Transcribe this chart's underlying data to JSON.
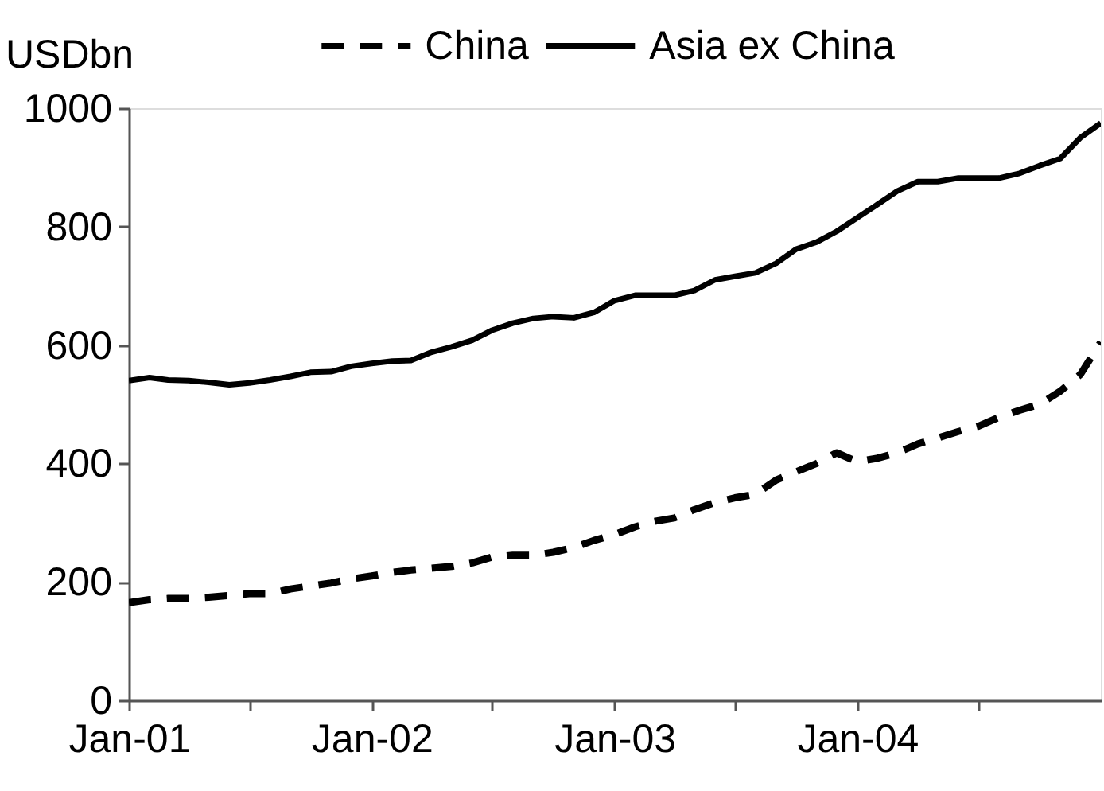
{
  "chart_data": {
    "type": "line",
    "ylabel": "USDbn",
    "x": [
      "2001-01",
      "2001-02",
      "2001-03",
      "2001-04",
      "2001-05",
      "2001-06",
      "2001-07",
      "2001-08",
      "2001-09",
      "2001-10",
      "2001-11",
      "2001-12",
      "2002-01",
      "2002-02",
      "2002-03",
      "2002-04",
      "2002-05",
      "2002-06",
      "2002-07",
      "2002-08",
      "2002-09",
      "2002-10",
      "2002-11",
      "2002-12",
      "2003-01",
      "2003-02",
      "2003-03",
      "2003-04",
      "2003-05",
      "2003-06",
      "2003-07",
      "2003-08",
      "2003-09",
      "2003-10",
      "2003-11",
      "2003-12",
      "2004-01",
      "2004-02",
      "2004-03",
      "2004-04",
      "2004-05",
      "2004-06",
      "2004-07",
      "2004-08",
      "2004-09",
      "2004-10",
      "2004-11",
      "2004-12",
      "2005-01"
    ],
    "series": [
      {
        "name": "China",
        "color": "#000000",
        "line_style": "dashed",
        "values": [
          165,
          170,
          172,
          172,
          174,
          177,
          180,
          180,
          188,
          193,
          198,
          205,
          210,
          216,
          220,
          223,
          226,
          232,
          242,
          245,
          245,
          250,
          258,
          270,
          280,
          293,
          302,
          308,
          322,
          334,
          342,
          348,
          372,
          386,
          400,
          418,
          403,
          409,
          418,
          433,
          443,
          454,
          463,
          478,
          490,
          500,
          522,
          550,
          605
        ]
      },
      {
        "name": "Asia ex China",
        "color": "#000000",
        "line_style": "solid",
        "values": [
          540,
          545,
          541,
          540,
          537,
          533,
          536,
          541,
          547,
          554,
          555,
          564,
          569,
          573,
          574,
          588,
          597,
          608,
          625,
          637,
          645,
          648,
          646,
          655,
          675,
          684,
          684,
          684,
          692,
          710,
          716,
          722,
          738,
          762,
          774,
          792,
          815,
          838,
          860,
          876,
          876,
          882,
          882,
          882,
          890,
          903,
          915,
          950,
          975
        ]
      }
    ],
    "xlim": [
      "2001-01",
      "2005-01"
    ],
    "xticks": [
      {
        "value": "2001-01",
        "label": "Jan-01"
      },
      {
        "value": "2001-07",
        "label": null
      },
      {
        "value": "2002-01",
        "label": "Jan-02"
      },
      {
        "value": "2002-07",
        "label": null
      },
      {
        "value": "2003-01",
        "label": "Jan-03"
      },
      {
        "value": "2003-07",
        "label": null
      },
      {
        "value": "2004-01",
        "label": "Jan-04"
      },
      {
        "value": "2004-07",
        "label": null
      }
    ],
    "ylim": [
      0,
      1000
    ],
    "yticks": [
      0,
      200,
      400,
      600,
      800,
      1000
    ],
    "grid": false,
    "legend": "top"
  }
}
